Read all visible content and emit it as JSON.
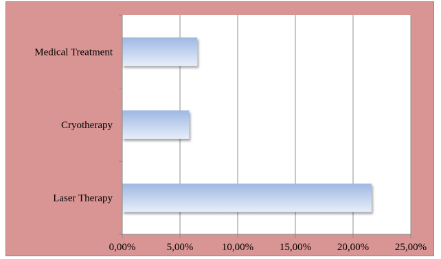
{
  "chart_data": {
    "type": "bar",
    "orientation": "horizontal",
    "categories": [
      "Medical Treatment",
      "Cryotherapy",
      "Laser Therapy"
    ],
    "values": [
      6.5,
      5.8,
      21.6
    ],
    "title": "",
    "xlabel": "",
    "ylabel": "",
    "xlim": [
      0,
      25
    ],
    "x_ticks": [
      0,
      5,
      10,
      15,
      20,
      25
    ],
    "x_tick_labels": [
      "0,00%",
      "5,00%",
      "10,00%",
      "15,00%",
      "20,00%",
      "25,00%"
    ],
    "grid": "vertical major gridlines",
    "legend": "none",
    "colors": {
      "background": "#d99594",
      "plot_area": "#ffffff",
      "bar_top": "#9fb8e3",
      "bar_bottom": "#e7eef9",
      "gridline": "#8c8c8c"
    }
  }
}
